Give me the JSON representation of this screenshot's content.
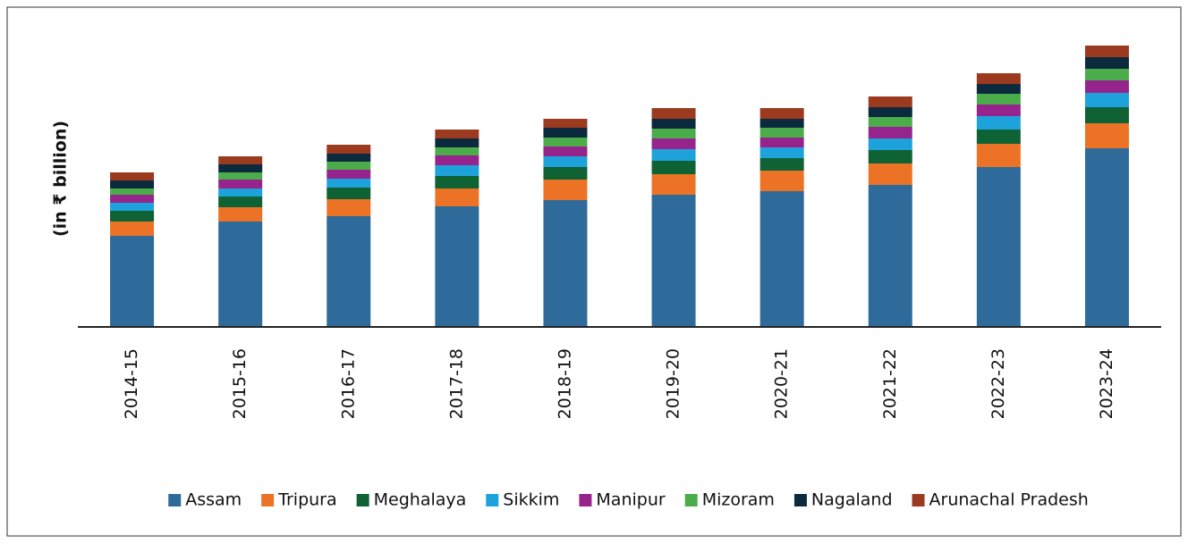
{
  "chart_data": {
    "type": "stacked_bar",
    "y_label": "(in ₹ billion)",
    "categories": [
      "2014-15",
      "2015-16",
      "2016-17",
      "2017-18",
      "2018-19",
      "2019-20",
      "2020-21",
      "2021-22",
      "2022-23",
      "2023-24"
    ],
    "ylim": [
      0,
      8000
    ],
    "series": [
      {
        "name": "Assam",
        "color": "#2e6b9a",
        "values": [
          2550,
          2950,
          3100,
          3375,
          3550,
          3700,
          3800,
          3975,
          4475,
          5000
        ]
      },
      {
        "name": "Tripura",
        "color": "#ec7326",
        "values": [
          400,
          400,
          475,
          500,
          575,
          575,
          575,
          600,
          650,
          700
        ]
      },
      {
        "name": "Meghalaya",
        "color": "#0e6233",
        "values": [
          300,
          300,
          325,
          350,
          350,
          375,
          350,
          375,
          400,
          450
        ]
      },
      {
        "name": "Sikkim",
        "color": "#1ea2db",
        "values": [
          225,
          225,
          250,
          300,
          300,
          325,
          300,
          325,
          375,
          400
        ]
      },
      {
        "name": "Manipur",
        "color": "#97238d",
        "values": [
          225,
          250,
          250,
          275,
          275,
          300,
          275,
          325,
          325,
          350
        ]
      },
      {
        "name": "Mizoram",
        "color": "#4aad4a",
        "values": [
          175,
          200,
          225,
          225,
          250,
          275,
          275,
          275,
          300,
          325
        ]
      },
      {
        "name": "Nagaland",
        "color": "#0c2a3e",
        "values": [
          225,
          225,
          225,
          250,
          275,
          275,
          250,
          275,
          275,
          325
        ]
      },
      {
        "name": "Arunachal Pradesh",
        "color": "#9b3a1e",
        "values": [
          225,
          225,
          250,
          250,
          250,
          300,
          300,
          300,
          300,
          325
        ]
      }
    ]
  }
}
